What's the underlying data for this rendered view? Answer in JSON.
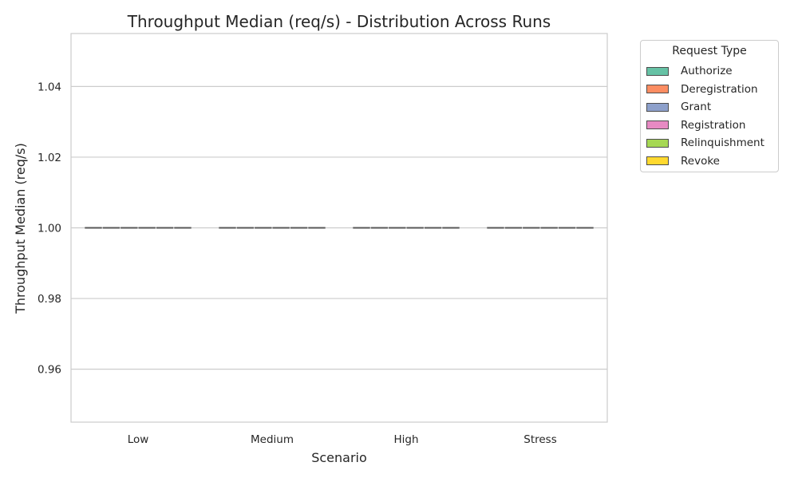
{
  "chart_data": {
    "type": "box",
    "title": "Throughput Median (req/s) - Distribution Across Runs",
    "xlabel": "Scenario",
    "ylabel": "Throughput Median (req/s)",
    "categories": [
      "Low",
      "Medium",
      "High",
      "Stress"
    ],
    "ylim": [
      0.945,
      1.055
    ],
    "yticks": [
      0.96,
      0.98,
      1.0,
      1.02,
      1.04
    ],
    "ytick_labels": [
      "0.96",
      "0.98",
      "1.00",
      "1.02",
      "1.04"
    ],
    "grid": true,
    "legend": {
      "title": "Request Type",
      "placement": "outside-right"
    },
    "series": [
      {
        "name": "Authorize",
        "color": "#66c2a5",
        "values": [
          1.0,
          1.0,
          1.0,
          1.0
        ]
      },
      {
        "name": "Deregistration",
        "color": "#fc8d62",
        "values": [
          1.0,
          1.0,
          1.0,
          1.0
        ]
      },
      {
        "name": "Grant",
        "color": "#8da0cb",
        "values": [
          1.0,
          1.0,
          1.0,
          1.0
        ]
      },
      {
        "name": "Registration",
        "color": "#e78ac3",
        "values": [
          1.0,
          1.0,
          1.0,
          1.0
        ]
      },
      {
        "name": "Relinquishment",
        "color": "#a6d854",
        "values": [
          1.0,
          1.0,
          1.0,
          1.0
        ]
      },
      {
        "name": "Revoke",
        "color": "#ffd92f",
        "values": [
          1.0,
          1.0,
          1.0,
          1.0
        ]
      }
    ]
  }
}
